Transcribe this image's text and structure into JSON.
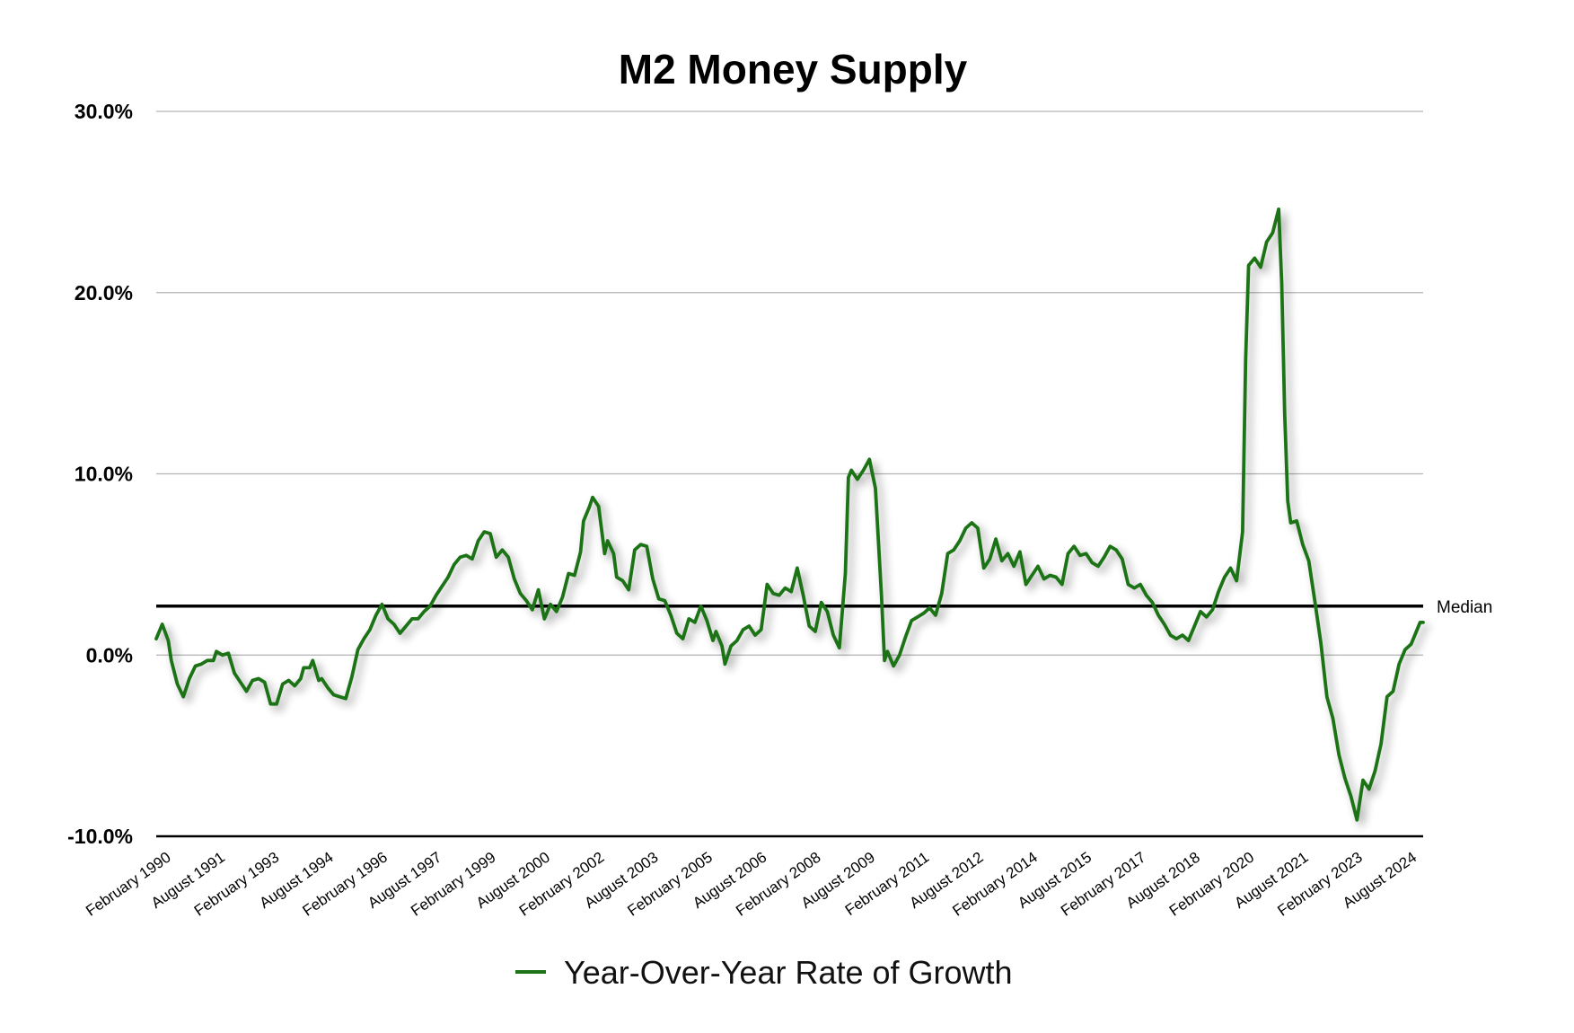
{
  "chart_data": {
    "type": "line",
    "title": "M2 Money Supply",
    "xlabel": "",
    "ylabel": "",
    "ylim": [
      -10.0,
      30.0
    ],
    "y_ticks": [
      -10.0,
      0.0,
      10.0,
      20.0,
      30.0
    ],
    "y_tick_labels": [
      "-10.0%",
      "0.0%",
      "10.0%",
      "20.0%",
      "30.0%"
    ],
    "grid": true,
    "legend_position": "bottom-center",
    "x_tick_labels": [
      {
        "date": "1990-02",
        "label": "February 1990"
      },
      {
        "date": "1991-08",
        "label": "August 1991"
      },
      {
        "date": "1993-02",
        "label": "February 1993"
      },
      {
        "date": "1994-08",
        "label": "August 1994"
      },
      {
        "date": "1996-02",
        "label": "February 1996"
      },
      {
        "date": "1997-08",
        "label": "August 1997"
      },
      {
        "date": "1999-02",
        "label": "February 1999"
      },
      {
        "date": "2000-08",
        "label": "August 2000"
      },
      {
        "date": "2002-02",
        "label": "February 2002"
      },
      {
        "date": "2003-08",
        "label": "August 2003"
      },
      {
        "date": "2005-02",
        "label": "February 2005"
      },
      {
        "date": "2006-08",
        "label": "August 2006"
      },
      {
        "date": "2008-02",
        "label": "February 2008"
      },
      {
        "date": "2009-08",
        "label": "August 2009"
      },
      {
        "date": "2011-02",
        "label": "February 2011"
      },
      {
        "date": "2012-08",
        "label": "August 2012"
      },
      {
        "date": "2014-02",
        "label": "February 2014"
      },
      {
        "date": "2015-08",
        "label": "August 2015"
      },
      {
        "date": "2017-02",
        "label": "February 2017"
      },
      {
        "date": "2018-08",
        "label": "August 2018"
      },
      {
        "date": "2020-02",
        "label": "February 2020"
      },
      {
        "date": "2021-08",
        "label": "August 2021"
      },
      {
        "date": "2023-02",
        "label": "February 2023"
      },
      {
        "date": "2024-08",
        "label": "August 2024"
      }
    ],
    "reference_lines": [
      {
        "name": "Median",
        "value": 2.7,
        "color": "#000000"
      }
    ],
    "series": [
      {
        "name": "Year-Over-Year Rate of Growth",
        "color": "#1c7318",
        "points": [
          [
            "1990-01",
            0.9
          ],
          [
            "1990-03",
            1.7
          ],
          [
            "1990-05",
            0.8
          ],
          [
            "1990-06",
            -0.3
          ],
          [
            "1990-08",
            -1.6
          ],
          [
            "1990-10",
            -2.3
          ],
          [
            "1990-12",
            -1.3
          ],
          [
            "1991-02",
            -0.6
          ],
          [
            "1991-04",
            -0.5
          ],
          [
            "1991-06",
            -0.3
          ],
          [
            "1991-08",
            -0.3
          ],
          [
            "1991-09",
            0.2
          ],
          [
            "1991-11",
            0.0
          ],
          [
            "1992-01",
            0.1
          ],
          [
            "1992-03",
            -1.0
          ],
          [
            "1992-05",
            -1.5
          ],
          [
            "1992-07",
            -2.0
          ],
          [
            "1992-09",
            -1.4
          ],
          [
            "1992-11",
            -1.3
          ],
          [
            "1993-01",
            -1.5
          ],
          [
            "1993-03",
            -2.7
          ],
          [
            "1993-05",
            -2.7
          ],
          [
            "1993-07",
            -1.6
          ],
          [
            "1993-09",
            -1.4
          ],
          [
            "1993-11",
            -1.7
          ],
          [
            "1994-01",
            -1.3
          ],
          [
            "1994-02",
            -0.7
          ],
          [
            "1994-04",
            -0.7
          ],
          [
            "1994-05",
            -0.3
          ],
          [
            "1994-07",
            -1.4
          ],
          [
            "1994-08",
            -1.3
          ],
          [
            "1994-10",
            -1.8
          ],
          [
            "1994-12",
            -2.2
          ],
          [
            "1995-02",
            -2.3
          ],
          [
            "1995-04",
            -2.4
          ],
          [
            "1995-06",
            -1.2
          ],
          [
            "1995-08",
            0.3
          ],
          [
            "1995-10",
            0.9
          ],
          [
            "1995-12",
            1.4
          ],
          [
            "1996-02",
            2.2
          ],
          [
            "1996-04",
            2.8
          ],
          [
            "1996-06",
            2.0
          ],
          [
            "1996-08",
            1.7
          ],
          [
            "1996-10",
            1.2
          ],
          [
            "1996-12",
            1.6
          ],
          [
            "1997-02",
            2.0
          ],
          [
            "1997-04",
            2.0
          ],
          [
            "1997-06",
            2.4
          ],
          [
            "1997-08",
            2.7
          ],
          [
            "1997-10",
            3.3
          ],
          [
            "1997-12",
            3.8
          ],
          [
            "1998-02",
            4.3
          ],
          [
            "1998-04",
            5.0
          ],
          [
            "1998-06",
            5.4
          ],
          [
            "1998-08",
            5.5
          ],
          [
            "1998-10",
            5.3
          ],
          [
            "1998-12",
            6.3
          ],
          [
            "1999-02",
            6.8
          ],
          [
            "1999-04",
            6.7
          ],
          [
            "1999-06",
            5.4
          ],
          [
            "1999-08",
            5.8
          ],
          [
            "1999-10",
            5.4
          ],
          [
            "1999-12",
            4.2
          ],
          [
            "2000-02",
            3.4
          ],
          [
            "2000-04",
            3.0
          ],
          [
            "2000-06",
            2.5
          ],
          [
            "2000-08",
            3.6
          ],
          [
            "2000-10",
            2.0
          ],
          [
            "2000-12",
            2.8
          ],
          [
            "2001-02",
            2.4
          ],
          [
            "2001-04",
            3.2
          ],
          [
            "2001-06",
            4.5
          ],
          [
            "2001-08",
            4.4
          ],
          [
            "2001-10",
            5.7
          ],
          [
            "2001-11",
            7.4
          ],
          [
            "2002-01",
            8.2
          ],
          [
            "2002-02",
            8.7
          ],
          [
            "2002-04",
            8.2
          ],
          [
            "2002-06",
            5.6
          ],
          [
            "2002-07",
            6.3
          ],
          [
            "2002-09",
            5.6
          ],
          [
            "2002-10",
            4.3
          ],
          [
            "2002-12",
            4.1
          ],
          [
            "2003-02",
            3.6
          ],
          [
            "2003-04",
            5.8
          ],
          [
            "2003-06",
            6.1
          ],
          [
            "2003-08",
            6.0
          ],
          [
            "2003-10",
            4.2
          ],
          [
            "2003-12",
            3.1
          ],
          [
            "2004-02",
            3.0
          ],
          [
            "2004-04",
            2.2
          ],
          [
            "2004-06",
            1.2
          ],
          [
            "2004-08",
            0.9
          ],
          [
            "2004-10",
            2.0
          ],
          [
            "2004-12",
            1.8
          ],
          [
            "2005-02",
            2.7
          ],
          [
            "2005-04",
            1.9
          ],
          [
            "2005-06",
            0.8
          ],
          [
            "2005-07",
            1.3
          ],
          [
            "2005-09",
            0.5
          ],
          [
            "2005-10",
            -0.5
          ],
          [
            "2005-12",
            0.5
          ],
          [
            "2006-02",
            0.8
          ],
          [
            "2006-04",
            1.4
          ],
          [
            "2006-06",
            1.6
          ],
          [
            "2006-08",
            1.1
          ],
          [
            "2006-10",
            1.4
          ],
          [
            "2006-12",
            3.9
          ],
          [
            "2007-02",
            3.4
          ],
          [
            "2007-04",
            3.3
          ],
          [
            "2007-06",
            3.7
          ],
          [
            "2007-08",
            3.5
          ],
          [
            "2007-10",
            4.8
          ],
          [
            "2007-12",
            3.3
          ],
          [
            "2008-02",
            1.6
          ],
          [
            "2008-04",
            1.3
          ],
          [
            "2008-06",
            2.9
          ],
          [
            "2008-08",
            2.4
          ],
          [
            "2008-10",
            1.1
          ],
          [
            "2008-12",
            0.4
          ],
          [
            "2009-02",
            4.5
          ],
          [
            "2009-03",
            9.8
          ],
          [
            "2009-04",
            10.2
          ],
          [
            "2009-06",
            9.7
          ],
          [
            "2009-08",
            10.2
          ],
          [
            "2009-10",
            10.8
          ],
          [
            "2009-12",
            9.2
          ],
          [
            "2010-02",
            3.3
          ],
          [
            "2010-03",
            -0.3
          ],
          [
            "2010-04",
            0.2
          ],
          [
            "2010-06",
            -0.6
          ],
          [
            "2010-08",
            0.0
          ],
          [
            "2010-10",
            1.0
          ],
          [
            "2010-12",
            1.9
          ],
          [
            "2011-02",
            2.1
          ],
          [
            "2011-04",
            2.3
          ],
          [
            "2011-06",
            2.6
          ],
          [
            "2011-08",
            2.2
          ],
          [
            "2011-10",
            3.4
          ],
          [
            "2011-12",
            5.6
          ],
          [
            "2012-02",
            5.8
          ],
          [
            "2012-04",
            6.3
          ],
          [
            "2012-06",
            7.0
          ],
          [
            "2012-08",
            7.3
          ],
          [
            "2012-10",
            7.0
          ],
          [
            "2012-12",
            4.8
          ],
          [
            "2013-02",
            5.3
          ],
          [
            "2013-04",
            6.4
          ],
          [
            "2013-06",
            5.2
          ],
          [
            "2013-08",
            5.6
          ],
          [
            "2013-10",
            4.9
          ],
          [
            "2013-12",
            5.7
          ],
          [
            "2014-02",
            3.9
          ],
          [
            "2014-04",
            4.4
          ],
          [
            "2014-06",
            4.9
          ],
          [
            "2014-08",
            4.2
          ],
          [
            "2014-10",
            4.4
          ],
          [
            "2014-12",
            4.3
          ],
          [
            "2015-02",
            3.9
          ],
          [
            "2015-04",
            5.6
          ],
          [
            "2015-06",
            6.0
          ],
          [
            "2015-08",
            5.5
          ],
          [
            "2015-10",
            5.6
          ],
          [
            "2015-12",
            5.1
          ],
          [
            "2016-02",
            4.9
          ],
          [
            "2016-04",
            5.4
          ],
          [
            "2016-06",
            6.0
          ],
          [
            "2016-08",
            5.8
          ],
          [
            "2016-10",
            5.3
          ],
          [
            "2016-12",
            3.9
          ],
          [
            "2017-02",
            3.7
          ],
          [
            "2017-04",
            3.9
          ],
          [
            "2017-06",
            3.3
          ],
          [
            "2017-08",
            2.9
          ],
          [
            "2017-10",
            2.2
          ],
          [
            "2017-12",
            1.7
          ],
          [
            "2018-02",
            1.1
          ],
          [
            "2018-04",
            0.9
          ],
          [
            "2018-06",
            1.1
          ],
          [
            "2018-08",
            0.8
          ],
          [
            "2018-10",
            1.6
          ],
          [
            "2018-12",
            2.4
          ],
          [
            "2019-02",
            2.1
          ],
          [
            "2019-04",
            2.5
          ],
          [
            "2019-06",
            3.5
          ],
          [
            "2019-08",
            4.3
          ],
          [
            "2019-10",
            4.8
          ],
          [
            "2019-12",
            4.1
          ],
          [
            "2020-02",
            6.8
          ],
          [
            "2020-03",
            16.3
          ],
          [
            "2020-04",
            21.5
          ],
          [
            "2020-06",
            21.9
          ],
          [
            "2020-08",
            21.4
          ],
          [
            "2020-10",
            22.8
          ],
          [
            "2020-12",
            23.3
          ],
          [
            "2021-02",
            24.6
          ],
          [
            "2021-03",
            20.5
          ],
          [
            "2021-04",
            13.3
          ],
          [
            "2021-05",
            8.5
          ],
          [
            "2021-06",
            7.3
          ],
          [
            "2021-08",
            7.4
          ],
          [
            "2021-10",
            6.1
          ],
          [
            "2021-12",
            5.2
          ],
          [
            "2022-02",
            3.0
          ],
          [
            "2022-04",
            0.7
          ],
          [
            "2022-06",
            -2.3
          ],
          [
            "2022-08",
            -3.5
          ],
          [
            "2022-10",
            -5.5
          ],
          [
            "2022-12",
            -6.8
          ],
          [
            "2023-02",
            -7.8
          ],
          [
            "2023-04",
            -9.1
          ],
          [
            "2023-06",
            -6.9
          ],
          [
            "2023-08",
            -7.4
          ],
          [
            "2023-10",
            -6.4
          ],
          [
            "2023-12",
            -4.9
          ],
          [
            "2024-02",
            -2.3
          ],
          [
            "2024-04",
            -2.0
          ],
          [
            "2024-06",
            -0.5
          ],
          [
            "2024-08",
            0.3
          ],
          [
            "2024-10",
            0.6
          ],
          [
            "2024-11",
            1.0
          ],
          [
            "2025-01",
            1.8
          ],
          [
            "2025-02",
            1.8
          ]
        ]
      }
    ]
  }
}
